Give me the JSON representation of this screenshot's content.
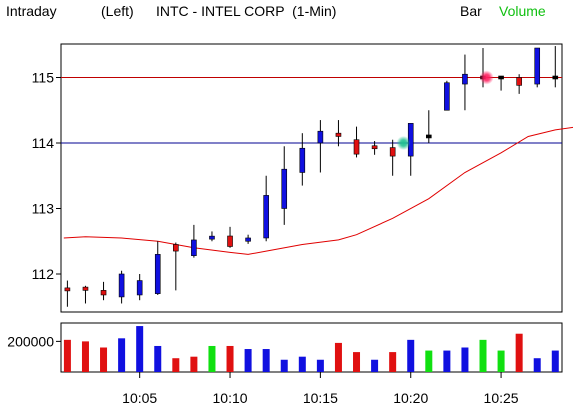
{
  "header": {
    "mode": "Intraday",
    "position": "(Left)",
    "symbol_title": "INTC - INTEL CORP  (1-Min)",
    "bar_label": "Bar",
    "volume_label": "Volume"
  },
  "colors": {
    "up_bar": "#1010e0",
    "down_bar": "#e01010",
    "moving_average": "#e00000",
    "resistance_line": "#c00000",
    "support_line": "#000090",
    "volume_up": "#1010e0",
    "volume_down": "#e01010",
    "volume_neutral": "#10e010",
    "volume_label_color": "#10c010",
    "marker_red": "#ff2060",
    "marker_green": "#20c090"
  },
  "chart_data": {
    "type": "candlestick",
    "y_ticks": [
      112,
      113,
      114,
      115
    ],
    "ylim": [
      111.55,
      115.5
    ],
    "x_ticks": [
      {
        "label": "10:05",
        "minute": 5
      },
      {
        "label": "10:10",
        "minute": 10
      },
      {
        "label": "10:15",
        "minute": 15
      },
      {
        "label": "10:20",
        "minute": 20
      },
      {
        "label": "10:25",
        "minute": 25
      }
    ],
    "horizontal_lines": [
      {
        "value": 115.0,
        "color_key": "resistance_line"
      },
      {
        "value": 114.0,
        "color_key": "support_line"
      }
    ],
    "bars": [
      {
        "minute": 1,
        "open": 111.78,
        "high": 111.9,
        "low": 111.5,
        "close": 111.75
      },
      {
        "minute": 2,
        "open": 111.8,
        "high": 111.82,
        "low": 111.55,
        "close": 111.75
      },
      {
        "minute": 3,
        "open": 111.75,
        "high": 111.88,
        "low": 111.6,
        "close": 111.68
      },
      {
        "minute": 4,
        "open": 111.65,
        "high": 112.05,
        "low": 111.55,
        "close": 112.0
      },
      {
        "minute": 5,
        "open": 111.68,
        "high": 112.0,
        "low": 111.6,
        "close": 111.9
      },
      {
        "minute": 6,
        "open": 111.7,
        "high": 112.5,
        "low": 111.68,
        "close": 112.3
      },
      {
        "minute": 7,
        "open": 112.45,
        "high": 112.48,
        "low": 111.75,
        "close": 112.35
      },
      {
        "minute": 8,
        "open": 112.28,
        "high": 112.75,
        "low": 112.25,
        "close": 112.52
      },
      {
        "minute": 9,
        "open": 112.55,
        "high": 112.65,
        "low": 112.5,
        "close": 112.56
      },
      {
        "minute": 10,
        "open": 112.58,
        "high": 112.72,
        "low": 112.4,
        "close": 112.42
      },
      {
        "minute": 11,
        "open": 112.5,
        "high": 112.6,
        "low": 112.46,
        "close": 112.55
      },
      {
        "minute": 12,
        "open": 112.55,
        "high": 113.5,
        "low": 112.5,
        "close": 113.2
      },
      {
        "minute": 13,
        "open": 113.0,
        "high": 113.95,
        "low": 112.75,
        "close": 113.6
      },
      {
        "minute": 14,
        "open": 113.55,
        "high": 114.15,
        "low": 113.35,
        "close": 113.92
      },
      {
        "minute": 15,
        "open": 114.0,
        "high": 114.35,
        "low": 113.55,
        "close": 114.18
      },
      {
        "minute": 16,
        "open": 114.15,
        "high": 114.35,
        "low": 113.95,
        "close": 114.1
      },
      {
        "minute": 17,
        "open": 114.05,
        "high": 114.25,
        "low": 113.78,
        "close": 113.83
      },
      {
        "minute": 18,
        "open": 113.95,
        "high": 114.03,
        "low": 113.82,
        "close": 113.92
      },
      {
        "minute": 19,
        "open": 113.93,
        "high": 114.05,
        "low": 113.5,
        "close": 113.8
      },
      {
        "minute": 20,
        "open": 113.8,
        "high": 114.3,
        "low": 113.5,
        "close": 114.3
      },
      {
        "minute": 21,
        "open": 114.1,
        "high": 114.5,
        "low": 114.0,
        "close": 114.1
      },
      {
        "minute": 22,
        "open": 114.5,
        "high": 114.95,
        "low": 114.5,
        "close": 114.92
      },
      {
        "minute": 23,
        "open": 114.9,
        "high": 115.35,
        "low": 114.5,
        "close": 115.05
      },
      {
        "minute": 24,
        "open": 115.0,
        "high": 115.45,
        "low": 114.85,
        "close": 115.0
      },
      {
        "minute": 25,
        "open": 115.0,
        "high": 115.0,
        "low": 114.8,
        "close": 115.0
      },
      {
        "minute": 26,
        "open": 115.0,
        "high": 115.05,
        "low": 114.75,
        "close": 114.88
      },
      {
        "minute": 27,
        "open": 114.9,
        "high": 115.45,
        "low": 114.85,
        "close": 115.45
      },
      {
        "minute": 28,
        "open": 115.0,
        "high": 115.48,
        "low": 114.85,
        "close": 115.0
      }
    ],
    "moving_average": [
      {
        "minute": 0.8,
        "value": 112.55
      },
      {
        "minute": 2,
        "value": 112.57
      },
      {
        "minute": 4,
        "value": 112.55
      },
      {
        "minute": 6,
        "value": 112.5
      },
      {
        "minute": 8,
        "value": 112.4
      },
      {
        "minute": 10,
        "value": 112.33
      },
      {
        "minute": 11,
        "value": 112.3
      },
      {
        "minute": 12,
        "value": 112.35
      },
      {
        "minute": 14,
        "value": 112.45
      },
      {
        "minute": 16,
        "value": 112.52
      },
      {
        "minute": 17,
        "value": 112.6
      },
      {
        "minute": 19,
        "value": 112.85
      },
      {
        "minute": 21,
        "value": 113.15
      },
      {
        "minute": 23,
        "value": 113.55
      },
      {
        "minute": 25,
        "value": 113.85
      },
      {
        "minute": 26.5,
        "value": 114.1
      },
      {
        "minute": 28,
        "value": 114.2
      },
      {
        "minute": 29.3,
        "value": 114.25
      }
    ],
    "markers": [
      {
        "minute": 24.2,
        "value": 115.0,
        "color_key": "marker_red"
      },
      {
        "minute": 19.6,
        "value": 114.0,
        "color_key": "marker_green"
      }
    ],
    "volume": {
      "y_tick": 200000,
      "y_tick_label": "200000",
      "ylim": [
        0,
        320000
      ],
      "values": [
        {
          "minute": 1,
          "value": 210000,
          "color_key": "volume_down"
        },
        {
          "minute": 2,
          "value": 200000,
          "color_key": "volume_down"
        },
        {
          "minute": 3,
          "value": 160000,
          "color_key": "volume_down"
        },
        {
          "minute": 4,
          "value": 220000,
          "color_key": "volume_up"
        },
        {
          "minute": 5,
          "value": 300000,
          "color_key": "volume_up"
        },
        {
          "minute": 6,
          "value": 170000,
          "color_key": "volume_up"
        },
        {
          "minute": 7,
          "value": 90000,
          "color_key": "volume_down"
        },
        {
          "minute": 8,
          "value": 100000,
          "color_key": "volume_down"
        },
        {
          "minute": 9,
          "value": 170000,
          "color_key": "volume_neutral"
        },
        {
          "minute": 10,
          "value": 170000,
          "color_key": "volume_down"
        },
        {
          "minute": 11,
          "value": 150000,
          "color_key": "volume_up"
        },
        {
          "minute": 12,
          "value": 150000,
          "color_key": "volume_up"
        },
        {
          "minute": 13,
          "value": 80000,
          "color_key": "volume_up"
        },
        {
          "minute": 14,
          "value": 100000,
          "color_key": "volume_up"
        },
        {
          "minute": 15,
          "value": 80000,
          "color_key": "volume_up"
        },
        {
          "minute": 16,
          "value": 190000,
          "color_key": "volume_down"
        },
        {
          "minute": 17,
          "value": 130000,
          "color_key": "volume_down"
        },
        {
          "minute": 18,
          "value": 80000,
          "color_key": "volume_up"
        },
        {
          "minute": 19,
          "value": 130000,
          "color_key": "volume_down"
        },
        {
          "minute": 20,
          "value": 210000,
          "color_key": "volume_up"
        },
        {
          "minute": 21,
          "value": 140000,
          "color_key": "volume_neutral"
        },
        {
          "minute": 22,
          "value": 140000,
          "color_key": "volume_up"
        },
        {
          "minute": 23,
          "value": 160000,
          "color_key": "volume_up"
        },
        {
          "minute": 24,
          "value": 210000,
          "color_key": "volume_neutral"
        },
        {
          "minute": 25,
          "value": 140000,
          "color_key": "volume_neutral"
        },
        {
          "minute": 26,
          "value": 250000,
          "color_key": "volume_down"
        },
        {
          "minute": 27,
          "value": 90000,
          "color_key": "volume_up"
        },
        {
          "minute": 28,
          "value": 140000,
          "color_key": "volume_up"
        }
      ]
    }
  }
}
